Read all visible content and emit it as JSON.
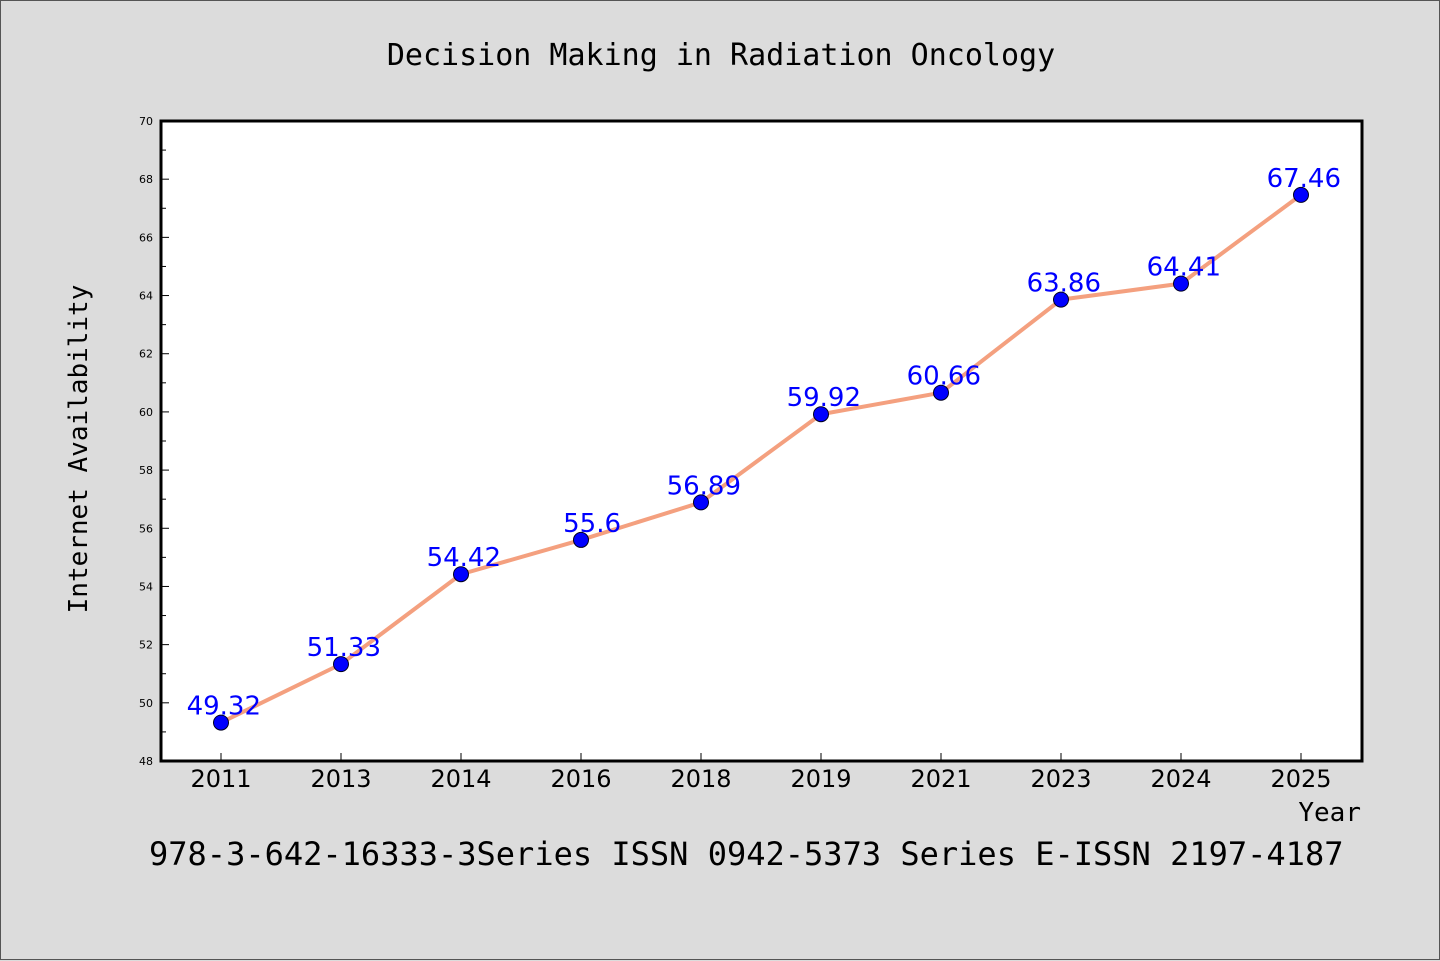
{
  "chart_data": {
    "type": "line",
    "title": "Decision Making in Radiation Oncology",
    "xlabel": "Year",
    "ylabel": "Internet Availability",
    "categories": [
      "2011",
      "2013",
      "2014",
      "2016",
      "2018",
      "2019",
      "2021",
      "2023",
      "2024",
      "2025"
    ],
    "series": [
      {
        "values": [
          49.32,
          51.33,
          54.42,
          55.6,
          56.89,
          59.92,
          60.66,
          63.86,
          64.41,
          67.46
        ],
        "labels": [
          "49.32",
          "51.33",
          "54.42",
          "55.6",
          "56.89",
          "59.92",
          "60.66",
          "63.86",
          "64.41",
          "67.46"
        ]
      }
    ],
    "ylim": [
      48,
      70
    ],
    "yticks": [
      "48",
      "50",
      "52",
      "54",
      "56",
      "58",
      "60",
      "62",
      "64",
      "66",
      "68",
      "70"
    ],
    "grid": false,
    "line_color": "#f4a07f",
    "marker_color": "#0000ff",
    "label_color": "#0000ff"
  },
  "footer": "978-3-642-16333-3Series ISSN 0942-5373 Series E-ISSN 2197-4187"
}
